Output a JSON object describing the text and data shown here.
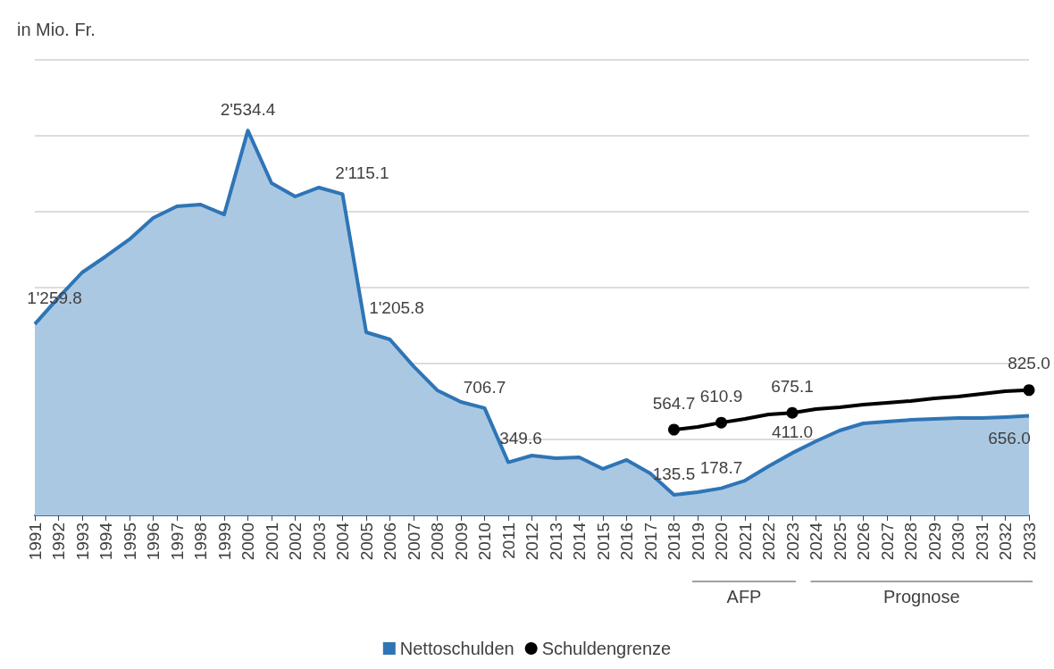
{
  "chart_data": {
    "type": "area",
    "ylabel": "in Mio. Fr.",
    "annotations": [
      "AFP",
      "Prognose"
    ],
    "categories": [
      "1991",
      "1992",
      "1993",
      "1994",
      "1995",
      "1996",
      "1997",
      "1998",
      "1999",
      "2000",
      "2001",
      "2002",
      "2003",
      "2004",
      "2005",
      "2006",
      "2007",
      "2008",
      "2009",
      "2010",
      "2011",
      "2012",
      "2013",
      "2014",
      "2015",
      "2016",
      "2017",
      "2018",
      "2019",
      "2020",
      "2021",
      "2022",
      "2023",
      "2024",
      "2025",
      "2026",
      "2027",
      "2028",
      "2029",
      "2030",
      "2031",
      "2032",
      "2033"
    ],
    "ylim": [
      0,
      3000
    ],
    "yticks": [
      {
        "value": 0,
        "label": null
      },
      {
        "value": 500,
        "label": null
      },
      {
        "value": 1000,
        "label": null
      },
      {
        "value": 1500,
        "label": null
      },
      {
        "value": 2000,
        "label": null
      },
      {
        "value": 2500,
        "label": null
      },
      {
        "value": 3000,
        "label": null
      }
    ],
    "grid": "y",
    "legend": "bottom",
    "tick_labels": "x",
    "series": [
      {
        "name": "Nettoschulden",
        "color": "#2e75b6",
        "values": [
          1259.8,
          1435,
          1600,
          1706,
          1818,
          1959,
          2035,
          2047,
          1982,
          2534.4,
          2188,
          2100,
          2159,
          2115.1,
          1205.8,
          1159,
          982,
          824,
          747,
          706.7,
          349.6,
          394,
          376,
          382,
          306,
          365,
          276,
          135.5,
          153,
          178.7,
          229,
          324,
          411.0,
          488,
          559,
          606,
          618,
          629,
          635,
          641,
          641,
          647,
          656.0
        ],
        "value_labels": [
          "1'259.8",
          null,
          null,
          null,
          null,
          null,
          null,
          null,
          null,
          "2'534.4",
          null,
          null,
          null,
          "2'115.1",
          "1'205.8",
          null,
          null,
          null,
          null,
          "706.7",
          "349.6",
          null,
          null,
          null,
          null,
          null,
          null,
          "135.5",
          null,
          "178.7",
          null,
          null,
          "411.0",
          null,
          null,
          null,
          null,
          null,
          null,
          null,
          null,
          null,
          "656.0"
        ]
      },
      {
        "name": "Schuldengrenze",
        "type": "line",
        "color": "#000000",
        "values": [
          null,
          null,
          null,
          null,
          null,
          null,
          null,
          null,
          null,
          null,
          null,
          null,
          null,
          null,
          null,
          null,
          null,
          null,
          null,
          null,
          null,
          null,
          null,
          null,
          null,
          null,
          null,
          564.7,
          582,
          610.9,
          635,
          665,
          675.1,
          700,
          712,
          729,
          741,
          753,
          771,
          782,
          800,
          818,
          825.0
        ],
        "value_labels": [
          null,
          null,
          null,
          null,
          null,
          null,
          null,
          null,
          null,
          null,
          null,
          null,
          null,
          null,
          null,
          null,
          null,
          null,
          null,
          null,
          null,
          null,
          null,
          null,
          null,
          null,
          null,
          "564.7",
          null,
          "610.9",
          null,
          null,
          "675.1",
          null,
          null,
          null,
          null,
          null,
          null,
          null,
          null,
          null,
          "825.0"
        ]
      }
    ]
  }
}
